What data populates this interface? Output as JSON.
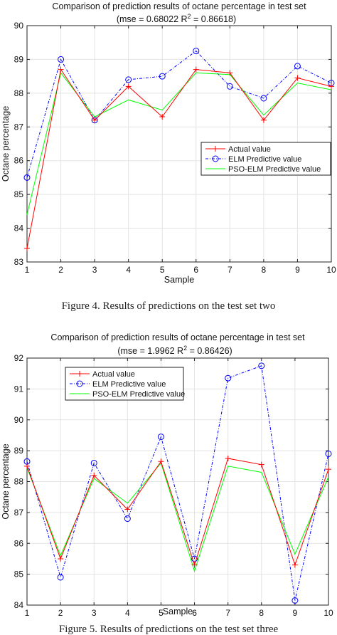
{
  "chart_data": [
    {
      "type": "line",
      "title": "Comparison of prediction results of octane percentage in test set",
      "subtitle_prefix": "(mse = 0.68022 R",
      "subtitle_sup": "2",
      "subtitle_suffix": " = 0.86618)",
      "xlabel": "Sample",
      "ylabel": "Octane percentage",
      "xlim": [
        1,
        10
      ],
      "ylim": [
        83,
        90
      ],
      "xticks": [
        1,
        2,
        3,
        4,
        5,
        6,
        7,
        8,
        9,
        10
      ],
      "yticks": [
        83,
        84,
        85,
        86,
        87,
        88,
        89,
        90
      ],
      "grid": true,
      "legend_position": "center-right",
      "x": [
        1,
        2,
        3,
        4,
        5,
        6,
        7,
        8,
        9,
        10
      ],
      "series": [
        {
          "name": "Actual value",
          "color": "#ff0000",
          "marker": "plus",
          "dash": "solid",
          "values": [
            83.4,
            88.7,
            87.2,
            88.2,
            87.3,
            88.7,
            88.6,
            87.2,
            88.45,
            88.2
          ]
        },
        {
          "name": "ELM Predictive value",
          "color": "#0000ff",
          "marker": "circle",
          "dash": "dashdot",
          "values": [
            85.5,
            89.0,
            87.2,
            88.4,
            88.5,
            89.25,
            88.2,
            87.85,
            88.8,
            88.3
          ]
        },
        {
          "name": "PSO-ELM Predictive value",
          "color": "#00ff00",
          "marker": "none",
          "dash": "solid",
          "values": [
            84.4,
            88.6,
            87.3,
            87.8,
            87.5,
            88.6,
            88.55,
            87.35,
            88.3,
            88.1
          ]
        }
      ],
      "caption": "Figure 4.    Results of predictions on the test set two"
    },
    {
      "type": "line",
      "title": "Comparison of prediction results of octane percentage in test set",
      "subtitle_prefix": "(mse = 1.9962 R",
      "subtitle_sup": "2",
      "subtitle_suffix": " = 0.86426)",
      "xlabel": "Sample",
      "ylabel": "Octane percentage",
      "xlim": [
        1,
        10
      ],
      "ylim": [
        84,
        92
      ],
      "xticks": [
        1,
        2,
        3,
        4,
        5,
        6,
        7,
        8,
        9,
        10
      ],
      "yticks": [
        84,
        85,
        86,
        87,
        88,
        89,
        90,
        91,
        92
      ],
      "grid": true,
      "legend_position": "top-left",
      "x": [
        1,
        2,
        3,
        4,
        5,
        6,
        7,
        8,
        9,
        10
      ],
      "series": [
        {
          "name": "Actual value",
          "color": "#ff0000",
          "marker": "plus",
          "dash": "solid",
          "values": [
            88.5,
            85.5,
            88.2,
            87.1,
            88.65,
            85.3,
            88.75,
            88.55,
            85.3,
            88.4
          ]
        },
        {
          "name": "ELM Predictive value",
          "color": "#0000ff",
          "marker": "circle",
          "dash": "dashdot",
          "values": [
            88.65,
            84.9,
            88.6,
            86.8,
            89.45,
            85.5,
            91.35,
            91.75,
            84.15,
            88.9
          ]
        },
        {
          "name": "PSO-ELM Predictive value",
          "color": "#00ff00",
          "marker": "none",
          "dash": "solid",
          "values": [
            88.45,
            85.6,
            88.1,
            87.3,
            88.6,
            85.1,
            88.5,
            88.3,
            85.65,
            88.15
          ]
        }
      ],
      "caption": "Figure 5.    Results of predictions on the test set three"
    }
  ]
}
